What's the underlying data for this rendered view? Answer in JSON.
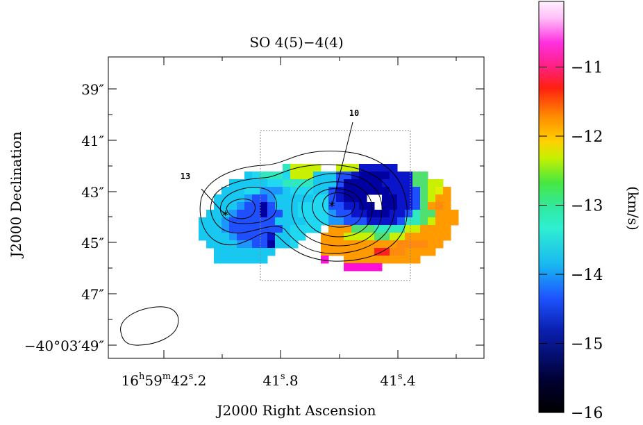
{
  "chart_data": {
    "type": "heatmap",
    "title": "SO 4(5)−4(4)",
    "xlabel": "J2000 Right Ascension",
    "ylabel": "J2000 Declination",
    "x_ticks": [
      {
        "pre": "16",
        "h": "h",
        "mid": "59",
        "m": "m",
        "main": "42",
        "s": "s",
        "frac": ".2"
      },
      {
        "pre": "",
        "h": "",
        "mid": "",
        "m": "",
        "main": "41",
        "s": "s",
        "frac": ".8"
      },
      {
        "pre": "",
        "h": "",
        "mid": "",
        "m": "",
        "main": "41",
        "s": "s",
        "frac": ".4"
      }
    ],
    "y_ticks": [
      "39″",
      "41″",
      "43″",
      "45″",
      "47″",
      "−40°03′49″"
    ],
    "colorbar": {
      "label": "(km/s)",
      "ticks": [
        "−11",
        "−12",
        "−13",
        "−14",
        "−15",
        "−16"
      ],
      "range": [
        -16,
        -10.05
      ]
    },
    "sources": [
      {
        "label": "13"
      },
      {
        "label": "10"
      }
    ],
    "contour_levels_count": 5,
    "colors": {
      "background": "#ffffff",
      "axes": "#000000",
      "box": "#888888"
    }
  }
}
